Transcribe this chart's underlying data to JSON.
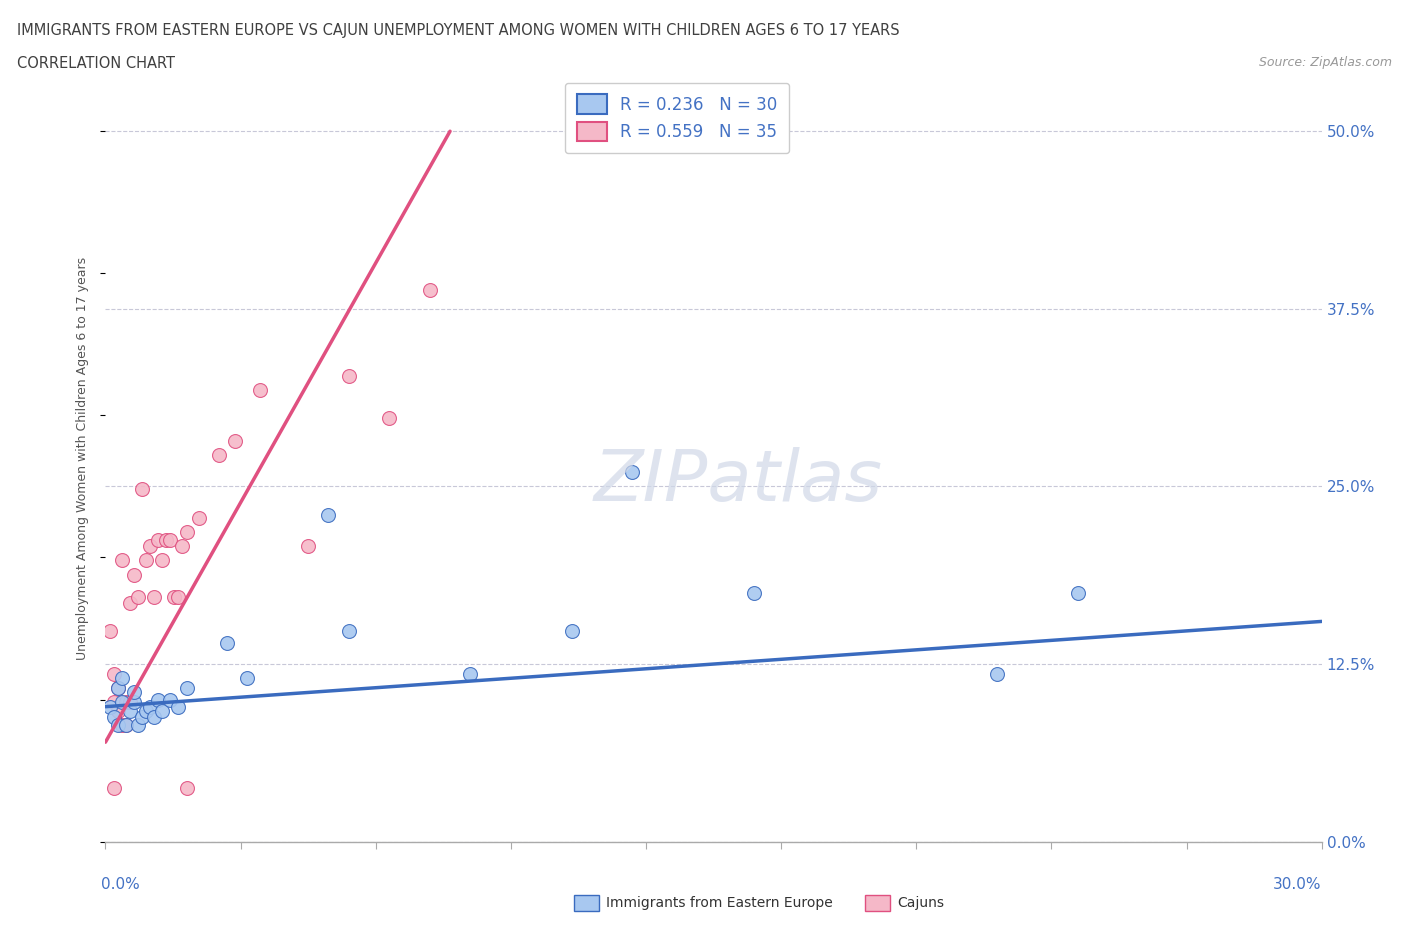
{
  "title": "IMMIGRANTS FROM EASTERN EUROPE VS CAJUN UNEMPLOYMENT AMONG WOMEN WITH CHILDREN AGES 6 TO 17 YEARS",
  "subtitle": "CORRELATION CHART",
  "source": "Source: ZipAtlas.com",
  "watermark": "ZIPatlas",
  "legend_blue_r": "R = 0.236",
  "legend_blue_n": "N = 30",
  "legend_pink_r": "R = 0.559",
  "legend_pink_n": "N = 35",
  "blue_color": "#a8c8f0",
  "pink_color": "#f5b8c8",
  "blue_line_color": "#3a6bbf",
  "pink_line_color": "#e05080",
  "bg_color": "#ffffff",
  "grid_color": "#c8c8d8",
  "title_color": "#404040",
  "axis_label_color": "#4472c4",
  "xlim": [
    0.0,
    0.3
  ],
  "ylim": [
    0.0,
    0.54
  ],
  "blue_line_x0": 0.0,
  "blue_line_y0": 0.095,
  "blue_line_x1": 0.3,
  "blue_line_y1": 0.155,
  "pink_line_x0": 0.0,
  "pink_line_y0": 0.07,
  "pink_line_x1": 0.085,
  "pink_line_y1": 0.5,
  "blue_scatter_x": [
    0.001,
    0.002,
    0.003,
    0.003,
    0.004,
    0.004,
    0.005,
    0.006,
    0.007,
    0.007,
    0.008,
    0.009,
    0.01,
    0.011,
    0.012,
    0.013,
    0.014,
    0.016,
    0.018,
    0.02,
    0.03,
    0.035,
    0.055,
    0.06,
    0.09,
    0.115,
    0.13,
    0.16,
    0.22,
    0.24
  ],
  "blue_scatter_y": [
    0.095,
    0.088,
    0.082,
    0.108,
    0.098,
    0.115,
    0.082,
    0.092,
    0.098,
    0.105,
    0.082,
    0.088,
    0.092,
    0.095,
    0.088,
    0.1,
    0.092,
    0.1,
    0.095,
    0.108,
    0.14,
    0.115,
    0.23,
    0.148,
    0.118,
    0.148,
    0.26,
    0.175,
    0.118,
    0.175
  ],
  "pink_scatter_x": [
    0.001,
    0.002,
    0.002,
    0.003,
    0.003,
    0.004,
    0.004,
    0.005,
    0.005,
    0.006,
    0.006,
    0.007,
    0.008,
    0.009,
    0.01,
    0.011,
    0.012,
    0.013,
    0.014,
    0.015,
    0.016,
    0.017,
    0.018,
    0.019,
    0.02,
    0.02,
    0.023,
    0.028,
    0.032,
    0.038,
    0.05,
    0.06,
    0.07,
    0.08,
    0.002
  ],
  "pink_scatter_y": [
    0.148,
    0.098,
    0.118,
    0.092,
    0.108,
    0.082,
    0.198,
    0.082,
    0.098,
    0.098,
    0.168,
    0.188,
    0.172,
    0.248,
    0.198,
    0.208,
    0.172,
    0.212,
    0.198,
    0.212,
    0.212,
    0.172,
    0.172,
    0.208,
    0.218,
    0.038,
    0.228,
    0.272,
    0.282,
    0.318,
    0.208,
    0.328,
    0.298,
    0.388,
    0.038
  ]
}
